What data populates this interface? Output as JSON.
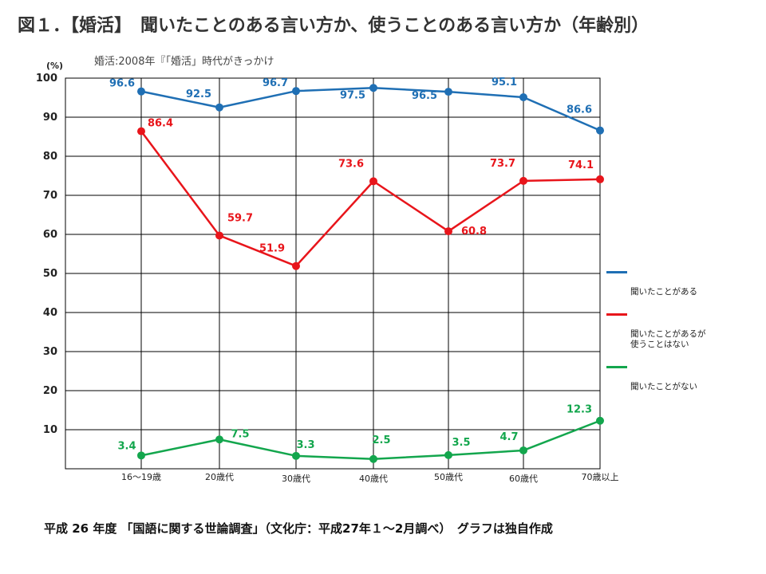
{
  "title": "図１．【婚活】　聞いたことのある言い方か、使うことのある言い方か（年齢別）",
  "subtitle": "婚活:2008年『「婚活」時代がきっかけ",
  "footer": "平成 26 年度 「国語に関する世論調査」（文化庁：平成27年１～2月調べ）　グラフは独自作成",
  "colors": {
    "blue": "#1f6fb4",
    "red": "#e8151b",
    "green": "#13a64d"
  },
  "chart_data": {
    "type": "line",
    "ylabel": "(%)",
    "xlabel": "",
    "ylim": [
      0,
      100
    ],
    "yticks": [
      10,
      20,
      30,
      40,
      50,
      60,
      70,
      80,
      90,
      100
    ],
    "grid": true,
    "legend_position": "right",
    "categories": [
      "16～19歳",
      "20歳代",
      "30歳代",
      "40歳代",
      "50歳代",
      "60歳代",
      "70歳以上"
    ],
    "series": [
      {
        "name": "聞いたことがある",
        "color": "#1f6fb4",
        "values": [
          96.6,
          92.5,
          96.7,
          97.5,
          96.5,
          95.1,
          86.6
        ]
      },
      {
        "name": "聞いたことがあるが\n使うことはない",
        "color": "#e8151b",
        "values": [
          86.4,
          59.7,
          51.9,
          73.6,
          60.8,
          73.7,
          74.1
        ]
      },
      {
        "name": "聞いたことがない",
        "color": "#13a64d",
        "values": [
          3.4,
          7.5,
          3.3,
          2.5,
          3.5,
          4.7,
          12.3
        ]
      }
    ]
  }
}
